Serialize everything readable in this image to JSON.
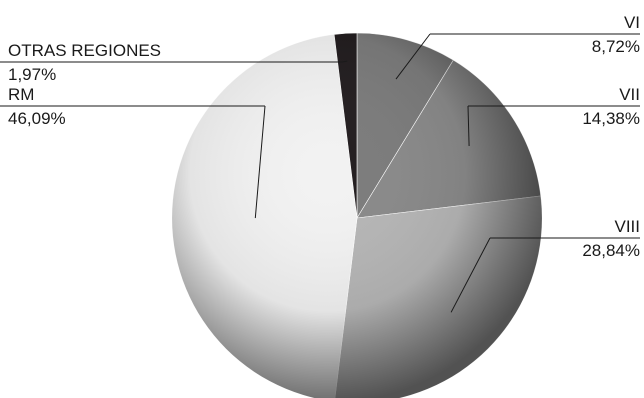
{
  "chart_data": {
    "type": "pie",
    "title": "",
    "slices": [
      {
        "name": "VI",
        "value": 8.72,
        "label": "8,72%",
        "color": "#7c7c7c"
      },
      {
        "name": "VII",
        "value": 14.38,
        "label": "14,38%",
        "color": "#8a8a8a"
      },
      {
        "name": "VIII",
        "value": 28.84,
        "label": "28,84%",
        "color": "#b6b6b6"
      },
      {
        "name": "RM",
        "value": 46.09,
        "label": "46,09%",
        "color": "#f2f2f2"
      },
      {
        "name": "OTRAS REGIONES",
        "value": 1.97,
        "label": "1,97%",
        "color": "#231e20"
      }
    ],
    "legend": "none",
    "label_style": "outside labels with leader lines"
  }
}
